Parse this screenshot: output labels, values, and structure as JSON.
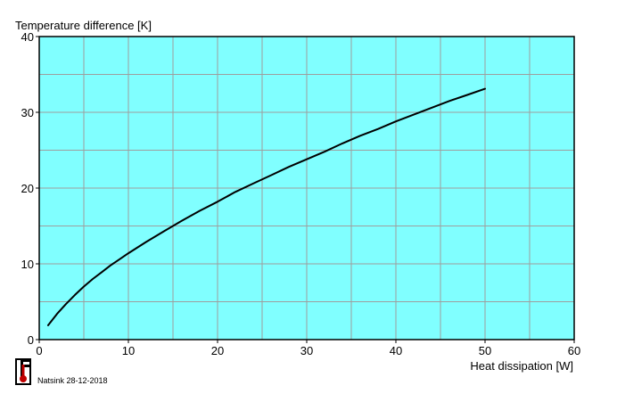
{
  "chart_data": {
    "type": "line",
    "title": "",
    "ylabel": "Temperature difference [K]",
    "xlabel": "Heat dissipation [W]",
    "xlim": [
      0,
      60
    ],
    "ylim": [
      0,
      40
    ],
    "x_ticks": [
      "0",
      "10",
      "20",
      "30",
      "40",
      "50",
      "60"
    ],
    "y_ticks": [
      "0",
      "10",
      "20",
      "30",
      "40"
    ],
    "x_grid_step": 5,
    "y_grid_step": 5,
    "grid": true,
    "colors": {
      "plot_background": "#80ffff",
      "grid": "#9e9e9e",
      "line": "#000000",
      "axis": "#000000"
    },
    "series": [
      {
        "x": [
          1,
          2,
          3,
          4,
          5,
          6,
          7,
          8,
          9,
          10,
          12,
          14,
          16,
          18,
          20,
          22,
          24,
          26,
          28,
          30,
          32,
          34,
          36,
          38,
          40,
          42,
          44,
          46,
          48,
          50
        ],
        "values": [
          1.9,
          3.4,
          4.7,
          5.9,
          7.0,
          8.0,
          8.9,
          9.8,
          10.6,
          11.4,
          12.9,
          14.3,
          15.7,
          17.0,
          18.2,
          19.5,
          20.6,
          21.7,
          22.8,
          23.8,
          24.8,
          25.9,
          26.9,
          27.8,
          28.8,
          29.7,
          30.6,
          31.5,
          32.3,
          33.1
        ]
      }
    ]
  },
  "footer": {
    "logo_icon": "thermometer-logo-icon",
    "caption": "Natsink 28-12-2018"
  }
}
